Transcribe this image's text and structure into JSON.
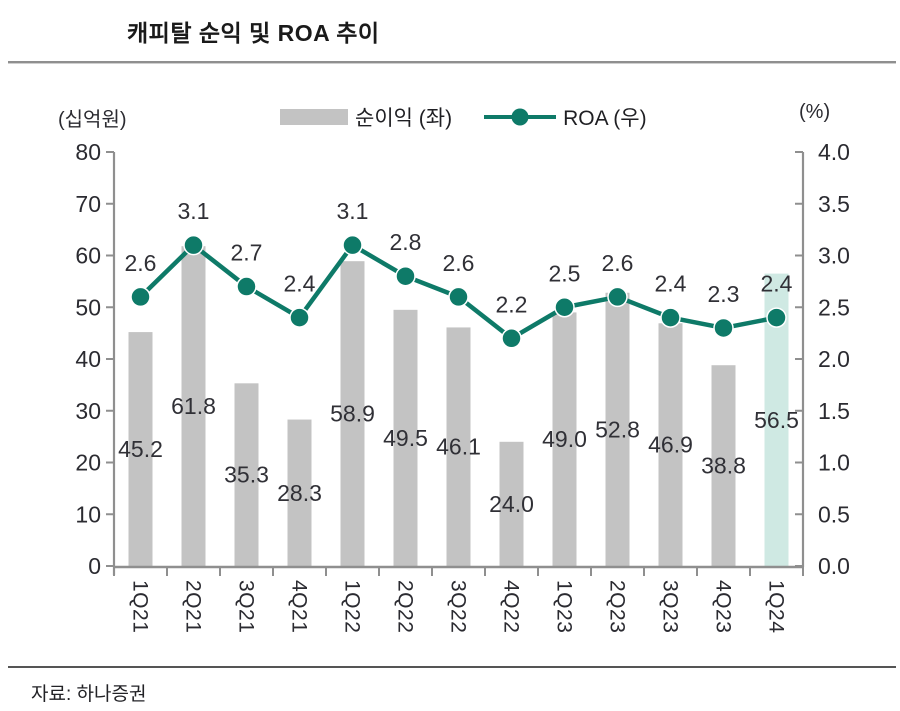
{
  "header": {
    "title": "캐피탈 순익 및 ROA 추이"
  },
  "footer": {
    "source": "자료: 하나증권"
  },
  "chart": {
    "left_unit": "(십억원)",
    "right_unit": "(%)",
    "legend": {
      "bars": "순이익 (좌)",
      "line": "ROA (우)"
    }
  },
  "colors": {
    "bar": "#c3c3c3",
    "bar_highlight": "#cfe9e3",
    "line": "#0e7a68",
    "dot_ring": "#ffffff",
    "data_label": "#303036",
    "tick_label": "#2b2b31",
    "axis": "#8f8f8f",
    "title_text": "#1a1a1a"
  },
  "chart_data": {
    "type": "bar",
    "title": "캐피탈 순익 및 ROA 추이",
    "categories": [
      "1Q21",
      "2Q21",
      "3Q21",
      "4Q21",
      "1Q22",
      "2Q22",
      "3Q22",
      "4Q22",
      "1Q23",
      "2Q23",
      "3Q23",
      "4Q23",
      "1Q24"
    ],
    "series": [
      {
        "name": "순이익 (좌)",
        "type": "bar",
        "axis": "left",
        "values": [
          45.2,
          61.8,
          35.3,
          28.3,
          58.9,
          49.5,
          46.1,
          24.0,
          49.0,
          52.8,
          46.9,
          38.8,
          56.5
        ],
        "highlight_index": 12
      },
      {
        "name": "ROA (우)",
        "type": "line",
        "axis": "right",
        "values": [
          2.6,
          3.1,
          2.7,
          2.4,
          3.1,
          2.8,
          2.6,
          2.2,
          2.5,
          2.6,
          2.4,
          2.3,
          2.4
        ]
      }
    ],
    "left_axis": {
      "label": "(십억원)",
      "ticks": [
        0,
        10,
        20,
        30,
        40,
        50,
        60,
        70,
        80
      ],
      "range": [
        0,
        80
      ]
    },
    "right_axis": {
      "label": "(%)",
      "ticks": [
        "0.0",
        "0.5",
        "1.0",
        "1.5",
        "2.0",
        "2.5",
        "3.0",
        "3.5",
        "4.0"
      ],
      "range": [
        0,
        4
      ]
    },
    "legend_position": "top",
    "grid": false,
    "source": "자료: 하나증권"
  }
}
